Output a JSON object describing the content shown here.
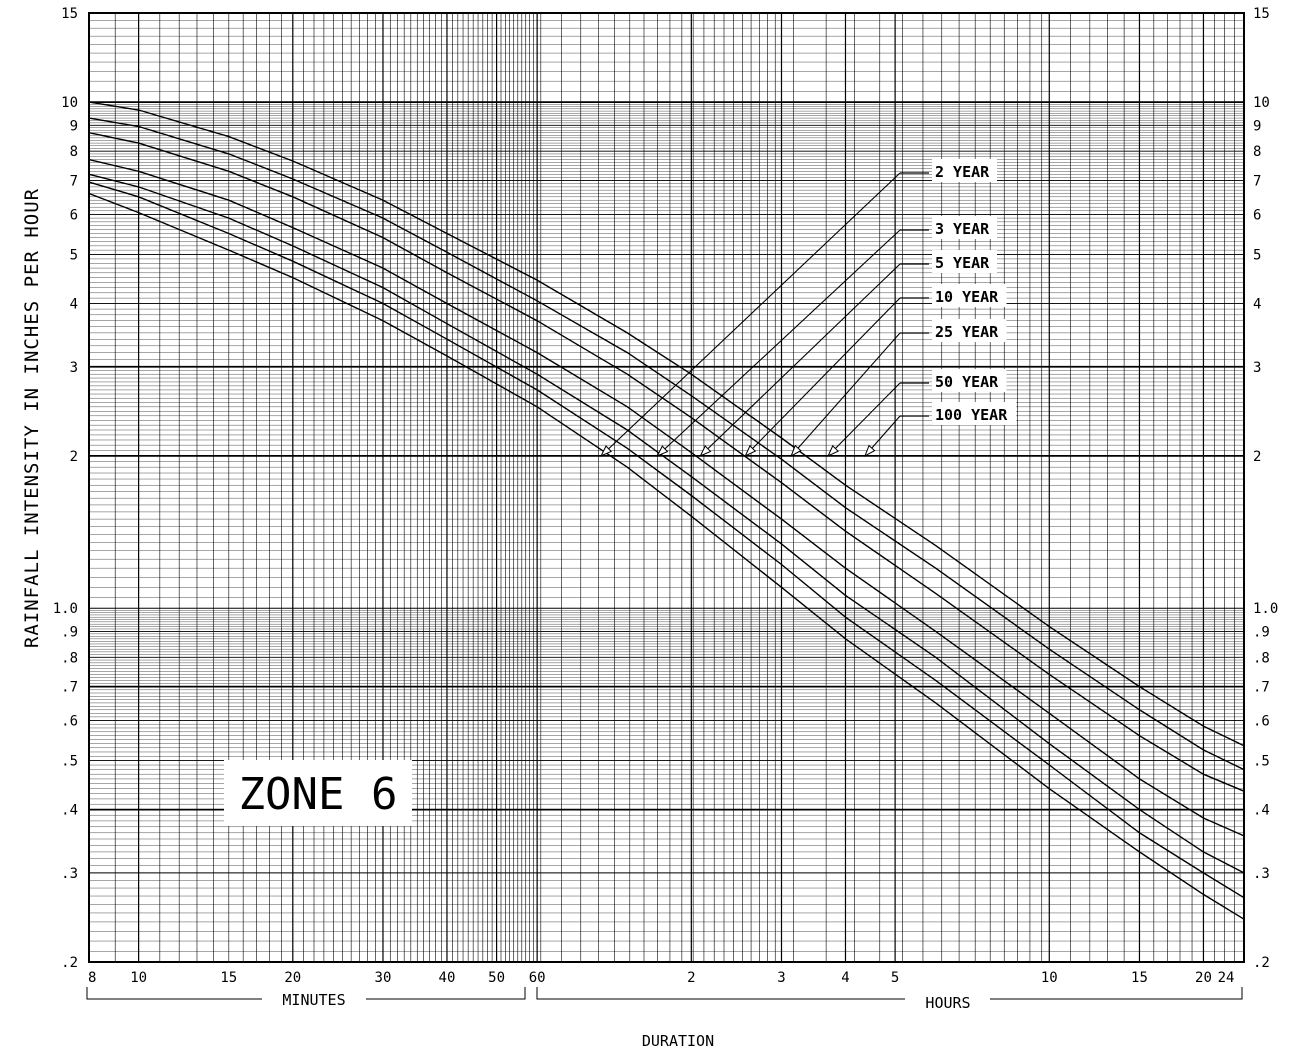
{
  "chart_data": {
    "type": "line",
    "title": "ZONE 6",
    "xlabel": "DURATION",
    "ylabel": "RAINFALL INTENSITY IN INCHES PER HOUR",
    "x_units": "minutes",
    "x_scale": "log",
    "y_scale": "log",
    "xlim": [
      8,
      1440
    ],
    "ylim": [
      0.2,
      15
    ],
    "x_ticks_minutes_segment": [
      {
        "value": 8,
        "label": "8"
      },
      {
        "value": 10,
        "label": "10"
      },
      {
        "value": 15,
        "label": "15"
      },
      {
        "value": 20,
        "label": "20"
      },
      {
        "value": 30,
        "label": "30"
      },
      {
        "value": 40,
        "label": "40"
      },
      {
        "value": 50,
        "label": "50"
      },
      {
        "value": 60,
        "label": "60"
      }
    ],
    "x_ticks_hours_segment": [
      {
        "value": 120,
        "label": "2"
      },
      {
        "value": 180,
        "label": "3"
      },
      {
        "value": 240,
        "label": "4"
      },
      {
        "value": 300,
        "label": "5"
      },
      {
        "value": 600,
        "label": "10"
      },
      {
        "value": 900,
        "label": "15"
      },
      {
        "value": 1200,
        "label": "20"
      },
      {
        "value": 1440,
        "label": "24"
      }
    ],
    "y_ticks": [
      {
        "value": 15,
        "label": "15"
      },
      {
        "value": 10,
        "label": "10"
      },
      {
        "value": 9,
        "label": "9"
      },
      {
        "value": 8,
        "label": "8"
      },
      {
        "value": 7,
        "label": "7"
      },
      {
        "value": 6,
        "label": "6"
      },
      {
        "value": 5,
        "label": "5"
      },
      {
        "value": 4,
        "label": "4"
      },
      {
        "value": 3,
        "label": "3"
      },
      {
        "value": 2,
        "label": "2"
      },
      {
        "value": 1.0,
        "label": "1.0"
      },
      {
        "value": 0.9,
        "label": ".9"
      },
      {
        "value": 0.8,
        "label": ".8"
      },
      {
        "value": 0.7,
        "label": ".7"
      },
      {
        "value": 0.6,
        "label": ".6"
      },
      {
        "value": 0.5,
        "label": ".5"
      },
      {
        "value": 0.4,
        "label": ".4"
      },
      {
        "value": 0.3,
        "label": ".3"
      },
      {
        "value": 0.2,
        "label": ".2"
      }
    ],
    "x_groups": {
      "minutes_label": "MINUTES",
      "hours_label": "HOURS"
    },
    "series": [
      {
        "name": "2 YEAR",
        "x": [
          8,
          10,
          15,
          20,
          30,
          40,
          60,
          90,
          120,
          180,
          240,
          360,
          600,
          900,
          1200,
          1440
        ],
        "y": [
          6.6,
          6.05,
          5.1,
          4.5,
          3.7,
          3.15,
          2.5,
          1.9,
          1.52,
          1.1,
          0.87,
          0.65,
          0.44,
          0.33,
          0.272,
          0.243
        ]
      },
      {
        "name": "3 YEAR",
        "x": [
          8,
          10,
          15,
          20,
          30,
          40,
          60,
          90,
          120,
          180,
          240,
          360,
          600,
          900,
          1200,
          1440
        ],
        "y": [
          6.95,
          6.5,
          5.5,
          4.85,
          4.0,
          3.4,
          2.7,
          2.07,
          1.67,
          1.22,
          0.96,
          0.72,
          0.49,
          0.36,
          0.3,
          0.268
        ]
      },
      {
        "name": "5 YEAR",
        "x": [
          8,
          10,
          15,
          20,
          30,
          40,
          60,
          90,
          120,
          180,
          240,
          360,
          600,
          900,
          1200,
          1440
        ],
        "y": [
          7.2,
          6.8,
          5.9,
          5.2,
          4.3,
          3.65,
          2.9,
          2.25,
          1.82,
          1.34,
          1.06,
          0.8,
          0.54,
          0.4,
          0.33,
          0.3
        ]
      },
      {
        "name": "10 YEAR",
        "x": [
          8,
          10,
          15,
          20,
          30,
          40,
          60,
          90,
          120,
          180,
          240,
          360,
          600,
          900,
          1200,
          1440
        ],
        "y": [
          7.7,
          7.3,
          6.4,
          5.65,
          4.7,
          4.0,
          3.2,
          2.5,
          2.03,
          1.5,
          1.2,
          0.9,
          0.62,
          0.46,
          0.385,
          0.355
        ]
      },
      {
        "name": "25 YEAR",
        "x": [
          8,
          10,
          15,
          20,
          30,
          40,
          60,
          90,
          120,
          180,
          240,
          360,
          600,
          900,
          1200,
          1440
        ],
        "y": [
          8.7,
          8.3,
          7.3,
          6.5,
          5.4,
          4.6,
          3.7,
          2.9,
          2.38,
          1.77,
          1.42,
          1.07,
          0.74,
          0.56,
          0.47,
          0.435
        ]
      },
      {
        "name": "50 YEAR",
        "x": [
          8,
          10,
          15,
          20,
          30,
          40,
          60,
          90,
          120,
          180,
          240,
          360,
          600,
          900,
          1200,
          1440
        ],
        "y": [
          9.3,
          8.95,
          7.9,
          7.05,
          5.9,
          5.05,
          4.05,
          3.2,
          2.63,
          1.97,
          1.58,
          1.2,
          0.83,
          0.63,
          0.525,
          0.48
        ]
      },
      {
        "name": "100 YEAR",
        "x": [
          8,
          10,
          15,
          20,
          30,
          40,
          60,
          90,
          120,
          180,
          240,
          360,
          600,
          900,
          1200,
          1440
        ],
        "y": [
          10.0,
          9.65,
          8.55,
          7.65,
          6.4,
          5.5,
          4.45,
          3.5,
          2.9,
          2.17,
          1.75,
          1.33,
          0.92,
          0.7,
          0.585,
          0.535
        ]
      }
    ],
    "series_label_arrow_targets": [
      {
        "name": "2 YEAR",
        "x": 80,
        "y": 2.0
      },
      {
        "name": "3 YEAR",
        "x": 103,
        "y": 2.0
      },
      {
        "name": "5 YEAR",
        "x": 125,
        "y": 2.0
      },
      {
        "name": "10 YEAR",
        "x": 153,
        "y": 2.0
      },
      {
        "name": "25 YEAR",
        "x": 188,
        "y": 2.0
      },
      {
        "name": "50 YEAR",
        "x": 222,
        "y": 2.0
      },
      {
        "name": "100 YEAR",
        "x": 262,
        "y": 2.0
      }
    ],
    "grid": true,
    "legend": "inline labels with leader arrows, upper right"
  }
}
